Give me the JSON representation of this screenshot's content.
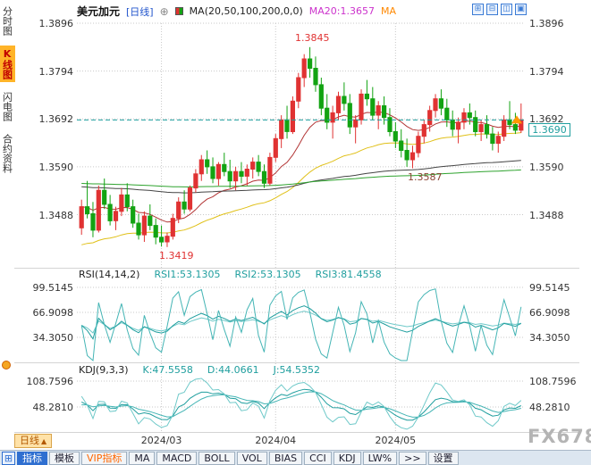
{
  "header": {
    "symbol": "美元加元",
    "period": "[日线]",
    "plus_icon": "⊕",
    "ma_settings": "MA(20,50,100,200,0,0)",
    "ma20": "MA20:1.3657",
    "ma_more": "MA",
    "window_icons": [
      "⊞",
      "⊟",
      "◫",
      "▣"
    ]
  },
  "sidebar": {
    "items": [
      {
        "name": "time-share-chart",
        "label": "分时图",
        "active": false
      },
      {
        "name": "kline-chart",
        "label": "K线图",
        "active": true
      },
      {
        "name": "lightning-chart",
        "label": "闪电图",
        "active": false
      },
      {
        "name": "contract-info",
        "label": "合约资料",
        "active": false
      }
    ]
  },
  "rsi": {
    "title": "RSI(14,14,2)",
    "rsi1": "RSI1:53.1305",
    "rsi2": "RSI2:53.1305",
    "rsi3": "RSI3:81.4558"
  },
  "kdj": {
    "title": "KDJ(9,3,3)",
    "k": "K:47.5558",
    "d": "D:44.0661",
    "j": "J:54.5352"
  },
  "annotations": {
    "peak": "1.3845",
    "trough": "1.3419",
    "ma_value": "1.3587",
    "last_price": "1.3690"
  },
  "bottom": {
    "period_tab": "日线",
    "period_arrow": "▲",
    "watermark": "FX678",
    "toolbar_icon": "⊞",
    "toolbar": [
      {
        "name": "indicator",
        "label": "指标",
        "style": "primary"
      },
      {
        "name": "template",
        "label": "模板",
        "style": ""
      },
      {
        "name": "vip-indicator",
        "label": "VIP指标",
        "style": "vip"
      },
      {
        "name": "ma",
        "label": "MA",
        "style": ""
      },
      {
        "name": "macd",
        "label": "MACD",
        "style": ""
      },
      {
        "name": "boll",
        "label": "BOLL",
        "style": ""
      },
      {
        "name": "vol",
        "label": "VOL",
        "style": ""
      },
      {
        "name": "bias",
        "label": "BIAS",
        "style": ""
      },
      {
        "name": "cci",
        "label": "CCI",
        "style": ""
      },
      {
        "name": "kdj",
        "label": "KDJ",
        "style": ""
      },
      {
        "name": "lw",
        "label": "LW%",
        "style": ""
      },
      {
        "name": "more",
        "label": ">>",
        "style": ""
      },
      {
        "name": "settings",
        "label": "设置",
        "style": ""
      }
    ]
  },
  "colors": {
    "up": "#e03232",
    "down": "#12a312",
    "teal": "#1f9e9e",
    "marker": "#ff9900",
    "accent_blue": "#2f6fd0",
    "vip_orange": "#ff6600",
    "magenta": "#cc33cc",
    "orange": "#ff8800"
  },
  "chart_data": {
    "type": "candlestick",
    "title": "美元加元 日线",
    "ylim": [
      1.3386,
      1.39
    ],
    "last_price": 1.369,
    "price_gridlines": [
      1.3896,
      1.3794,
      1.3692,
      1.359,
      1.3488
    ],
    "rsi_gridlines": [
      99.5145,
      66.9098,
      34.305
    ],
    "kdj_gridlines": [
      108.7596,
      48.281
    ],
    "month_ticks": [
      {
        "label": "2024/03",
        "index": 14
      },
      {
        "label": "2024/04",
        "index": 34
      },
      {
        "label": "2024/05",
        "index": 55
      }
    ],
    "ma_lines": [
      {
        "name": "MA20",
        "color": "#b23434",
        "alpha": 0.12,
        "seed": null
      },
      {
        "name": "MA50",
        "color": "#e0c018",
        "alpha": 0.045,
        "seed": 1.342
      },
      {
        "name": "MA100",
        "color": "#444444",
        "alpha": 0.012,
        "seed": 1.3548
      },
      {
        "name": "MA200",
        "color": "#2ea32e",
        "alpha": 0.006,
        "seed": 1.3555
      }
    ],
    "rsi_colors": [
      "#1f9e9e",
      "#45b5b5",
      "#6fc9c9"
    ],
    "kdj_colors": [
      "#1f9e9e",
      "#45b5b5",
      "#6fc9c9"
    ],
    "candles": [
      [
        1.346,
        1.352,
        1.3445,
        1.3505
      ],
      [
        1.3505,
        1.356,
        1.348,
        1.349
      ],
      [
        1.349,
        1.3515,
        1.344,
        1.3455
      ],
      [
        1.3455,
        1.355,
        1.345,
        1.354
      ],
      [
        1.354,
        1.3565,
        1.35,
        1.351
      ],
      [
        1.351,
        1.353,
        1.3465,
        1.3475
      ],
      [
        1.3475,
        1.3505,
        1.3455,
        1.3495
      ],
      [
        1.3495,
        1.3545,
        1.3485,
        1.353
      ],
      [
        1.353,
        1.3555,
        1.3495,
        1.3505
      ],
      [
        1.3505,
        1.352,
        1.346,
        1.347
      ],
      [
        1.347,
        1.349,
        1.3435,
        1.3445
      ],
      [
        1.3445,
        1.3495,
        1.343,
        1.3485
      ],
      [
        1.3485,
        1.351,
        1.3455,
        1.3465
      ],
      [
        1.3465,
        1.348,
        1.3425,
        1.344
      ],
      [
        1.344,
        1.3465,
        1.342,
        1.343
      ],
      [
        1.343,
        1.345,
        1.3419,
        1.3442
      ],
      [
        1.3442,
        1.349,
        1.3435,
        1.348
      ],
      [
        1.348,
        1.3525,
        1.347,
        1.3515
      ],
      [
        1.3515,
        1.354,
        1.349,
        1.35
      ],
      [
        1.35,
        1.355,
        1.3495,
        1.3545
      ],
      [
        1.3545,
        1.3585,
        1.3535,
        1.3575
      ],
      [
        1.3575,
        1.3615,
        1.356,
        1.3605
      ],
      [
        1.3605,
        1.3625,
        1.3575,
        1.359
      ],
      [
        1.359,
        1.361,
        1.3555,
        1.3565
      ],
      [
        1.3565,
        1.36,
        1.355,
        1.3595
      ],
      [
        1.3595,
        1.362,
        1.357,
        1.358
      ],
      [
        1.358,
        1.3605,
        1.3545,
        1.356
      ],
      [
        1.356,
        1.359,
        1.354,
        1.358
      ],
      [
        1.358,
        1.36,
        1.3555,
        1.357
      ],
      [
        1.357,
        1.3595,
        1.355,
        1.3585
      ],
      [
        1.3585,
        1.361,
        1.3565,
        1.36
      ],
      [
        1.36,
        1.3615,
        1.357,
        1.358
      ],
      [
        1.358,
        1.3595,
        1.3545,
        1.3555
      ],
      [
        1.3555,
        1.362,
        1.355,
        1.361
      ],
      [
        1.361,
        1.366,
        1.36,
        1.365
      ],
      [
        1.365,
        1.37,
        1.363,
        1.369
      ],
      [
        1.369,
        1.372,
        1.365,
        1.3665
      ],
      [
        1.3665,
        1.374,
        1.366,
        1.373
      ],
      [
        1.373,
        1.379,
        1.3715,
        1.378
      ],
      [
        1.378,
        1.383,
        1.376,
        1.382
      ],
      [
        1.382,
        1.3845,
        1.378,
        1.38
      ],
      [
        1.38,
        1.3825,
        1.375,
        1.3765
      ],
      [
        1.3765,
        1.378,
        1.37,
        1.3715
      ],
      [
        1.3715,
        1.3745,
        1.367,
        1.3685
      ],
      [
        1.3685,
        1.372,
        1.365,
        1.3705
      ],
      [
        1.3705,
        1.375,
        1.369,
        1.374
      ],
      [
        1.374,
        1.377,
        1.371,
        1.3725
      ],
      [
        1.3725,
        1.3745,
        1.366,
        1.3675
      ],
      [
        1.3675,
        1.37,
        1.364,
        1.369
      ],
      [
        1.369,
        1.3755,
        1.368,
        1.3745
      ],
      [
        1.3745,
        1.3775,
        1.372,
        1.3735
      ],
      [
        1.3735,
        1.376,
        1.369,
        1.37
      ],
      [
        1.37,
        1.373,
        1.367,
        1.372
      ],
      [
        1.372,
        1.374,
        1.368,
        1.3695
      ],
      [
        1.3695,
        1.3715,
        1.3655,
        1.3665
      ],
      [
        1.3665,
        1.3685,
        1.363,
        1.3645
      ],
      [
        1.3645,
        1.367,
        1.361,
        1.3625
      ],
      [
        1.3625,
        1.365,
        1.359,
        1.3605
      ],
      [
        1.3605,
        1.3635,
        1.3587,
        1.362
      ],
      [
        1.362,
        1.3665,
        1.361,
        1.3655
      ],
      [
        1.3655,
        1.369,
        1.364,
        1.368
      ],
      [
        1.368,
        1.372,
        1.3665,
        1.371
      ],
      [
        1.371,
        1.3745,
        1.3695,
        1.3735
      ],
      [
        1.3735,
        1.3755,
        1.37,
        1.3715
      ],
      [
        1.3715,
        1.3735,
        1.3675,
        1.369
      ],
      [
        1.369,
        1.371,
        1.3655,
        1.367
      ],
      [
        1.367,
        1.3695,
        1.364,
        1.3685
      ],
      [
        1.3685,
        1.3715,
        1.367,
        1.3705
      ],
      [
        1.3705,
        1.3725,
        1.368,
        1.3695
      ],
      [
        1.3695,
        1.371,
        1.3655,
        1.3665
      ],
      [
        1.3665,
        1.369,
        1.3645,
        1.368
      ],
      [
        1.368,
        1.37,
        1.365,
        1.366
      ],
      [
        1.366,
        1.3675,
        1.3625,
        1.364
      ],
      [
        1.364,
        1.3665,
        1.362,
        1.3655
      ],
      [
        1.3655,
        1.37,
        1.3645,
        1.369
      ],
      [
        1.369,
        1.373,
        1.367,
        1.368
      ],
      [
        1.368,
        1.3705,
        1.366,
        1.3668
      ],
      [
        1.3668,
        1.3725,
        1.3662,
        1.369
      ]
    ]
  }
}
